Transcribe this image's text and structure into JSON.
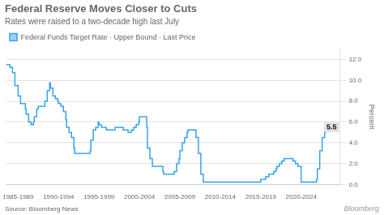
{
  "chart_data": {
    "type": "line",
    "line_style": "steps",
    "title": "Federal Reserve Moves Closer to Cuts",
    "subtitle": "Rates were raised to a two-decade high last July",
    "source": "Source: Bloomberg News",
    "watermark": "Bloomberg",
    "y_label": "Percent",
    "legend": "top-left",
    "grid": "y",
    "annotations": [
      {
        "text": "5.5",
        "y": 5.5
      }
    ],
    "xlim": [
      1983.5,
      2024.8
    ],
    "xticks": [
      {
        "value": 1985,
        "label": "1985-1989"
      },
      {
        "value": 1990,
        "label": "1990-1994"
      },
      {
        "value": 1995,
        "label": "1995-1999"
      },
      {
        "value": 2000,
        "label": "2000-2004"
      },
      {
        "value": 2005,
        "label": "2005-2009"
      },
      {
        "value": 2010,
        "label": "2010-2014"
      },
      {
        "value": 2015,
        "label": "2015-2019"
      },
      {
        "value": 2020,
        "label": "2020-2024"
      }
    ],
    "ylim": [
      0,
      13.0
    ],
    "yticks": [
      {
        "value": 0,
        "label": "0.0"
      },
      {
        "value": 2,
        "label": "2.0"
      },
      {
        "value": 4,
        "label": "4.0"
      },
      {
        "value": 6,
        "label": "6.0"
      },
      {
        "value": 8,
        "label": "8.0"
      },
      {
        "value": 10,
        "label": "10.0"
      },
      {
        "value": 12,
        "label": "12.0"
      }
    ],
    "x": [
      1983.5,
      1984,
      1984.3,
      1984.6,
      1985,
      1985.3,
      1985.6,
      1985.9,
      1986,
      1986.3,
      1986.6,
      1986.9,
      1987,
      1987.3,
      1987.5,
      1987.7,
      1988,
      1988.3,
      1988.6,
      1988.9,
      1989,
      1989.3,
      1989.6,
      1989.9,
      1990,
      1990.3,
      1990.6,
      1990.9,
      1991,
      1991.3,
      1991.6,
      1991.9,
      1992,
      1992.3,
      1992.6,
      1992.9,
      1993,
      1993.3,
      1993.6,
      1993.9,
      1994,
      1994.3,
      1994.6,
      1994.9,
      1995,
      1995.3,
      1995.6,
      1995.9,
      1996,
      1996.3,
      1996.6,
      1996.9,
      1997,
      1997.3,
      1997.6,
      1997.9,
      1998,
      1998.3,
      1998.6,
      1998.9,
      1999,
      1999.3,
      1999.6,
      1999.9,
      2000,
      2000.3,
      2000.6,
      2000.9,
      2001,
      2001.3,
      2001.6,
      2001.9,
      2002,
      2002.3,
      2002.6,
      2002.9,
      2003,
      2003.3,
      2003.6,
      2003.9,
      2004,
      2004.3,
      2004.6,
      2004.9,
      2005,
      2005.3,
      2005.6,
      2005.9,
      2006,
      2006.3,
      2006.6,
      2006.9,
      2007,
      2007.3,
      2007.6,
      2007.9,
      2008,
      2008.3,
      2008.6,
      2008.9,
      2009,
      2009.3,
      2009.6,
      2009.9,
      2010,
      2010.3,
      2010.6,
      2010.9,
      2011,
      2011.3,
      2011.6,
      2011.9,
      2012,
      2012.3,
      2012.6,
      2012.9,
      2013,
      2013.3,
      2013.6,
      2013.9,
      2014,
      2014.3,
      2014.6,
      2014.9,
      2015,
      2015.3,
      2015.6,
      2015.9,
      2016,
      2016.3,
      2016.6,
      2016.9,
      2017,
      2017.3,
      2017.6,
      2017.9,
      2018,
      2018.3,
      2018.6,
      2018.9,
      2019,
      2019.3,
      2019.6,
      2019.9,
      2020,
      2020.1,
      2020.3,
      2020.6,
      2021,
      2021.3,
      2021.6,
      2021.9,
      2022,
      2022.3,
      2022.6,
      2022.9,
      2023,
      2023.3,
      2023.6,
      2023.9,
      2024,
      2024.5
    ],
    "series": [
      {
        "name": "Federal Funds Target Rate · Upper Bound · Last Price",
        "values": [
          11.5,
          11.5,
          11.25,
          10.75,
          9.5,
          8.5,
          7.75,
          7.75,
          7.25,
          6.75,
          6.0,
          5.75,
          6.0,
          6.5,
          7.25,
          7.5,
          7.5,
          7.5,
          8.0,
          9.0,
          9.75,
          9.25,
          8.5,
          8.25,
          8.0,
          7.75,
          7.5,
          7.0,
          6.25,
          5.5,
          5.0,
          4.5,
          3.5,
          3.0,
          3.0,
          3.0,
          3.0,
          3.0,
          3.0,
          3.0,
          3.25,
          4.25,
          5.25,
          5.5,
          6.0,
          5.75,
          5.5,
          5.5,
          5.25,
          5.25,
          5.25,
          5.25,
          5.25,
          5.5,
          5.5,
          5.5,
          5.5,
          5.25,
          5.25,
          5.0,
          5.0,
          5.25,
          5.5,
          5.75,
          6.0,
          6.5,
          6.5,
          6.5,
          5.5,
          3.5,
          2.5,
          1.75,
          1.75,
          1.75,
          1.75,
          1.75,
          1.25,
          1.0,
          1.0,
          1.0,
          1.0,
          1.0,
          1.25,
          2.0,
          2.5,
          3.25,
          4.0,
          4.5,
          5.0,
          5.25,
          5.25,
          5.25,
          5.25,
          4.5,
          3.0,
          1.0,
          0.25,
          0.25,
          0.25,
          0.25,
          0.25,
          0.25,
          0.25,
          0.25,
          0.25,
          0.25,
          0.25,
          0.25,
          0.25,
          0.25,
          0.25,
          0.25,
          0.25,
          0.25,
          0.25,
          0.25,
          0.25,
          0.25,
          0.25,
          0.25,
          0.25,
          0.25,
          0.25,
          0.25,
          0.25,
          0.5,
          0.5,
          0.75,
          0.75,
          1.0,
          1.0,
          1.25,
          1.5,
          1.75,
          2.0,
          2.25,
          2.5,
          2.5,
          2.5,
          2.5,
          2.5,
          2.25,
          2.0,
          1.75,
          1.75,
          0.25,
          0.25,
          0.25,
          0.25,
          0.25,
          0.25,
          0.25,
          0.5,
          1.5,
          3.25,
          4.5,
          5.0,
          5.25,
          5.5,
          5.5,
          5.5,
          5.5
        ]
      }
    ]
  }
}
